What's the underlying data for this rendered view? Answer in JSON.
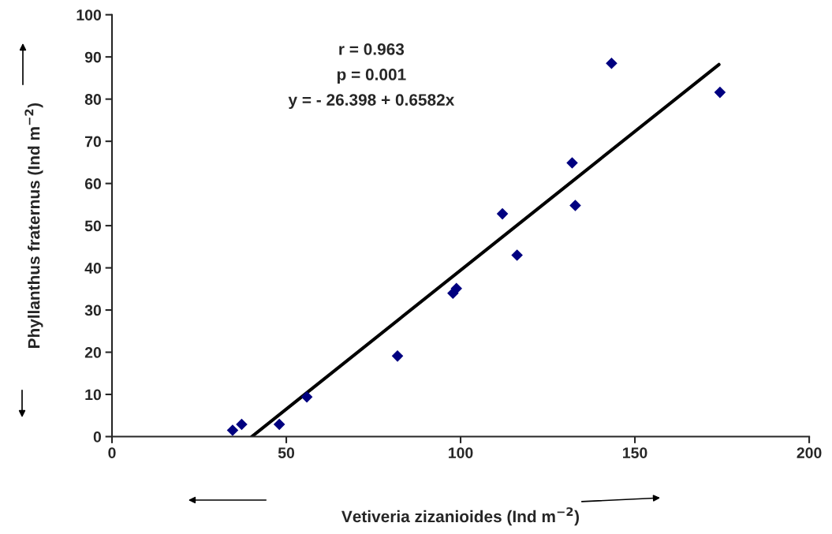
{
  "chart_data": {
    "type": "scatter",
    "xlabel": "Vetiveria zizanioides (Ind m$^{−2}$)",
    "ylabel": "Phyllanthus fraternus (Ind m$^{−2}$)",
    "annotations": [
      "r = 0.963",
      "p = 0.001",
      "y = - 26.398 + 0.6582x"
    ],
    "xlim": [
      0,
      200
    ],
    "xticks": [
      0,
      50,
      100,
      150,
      200
    ],
    "ylim": [
      0,
      100
    ],
    "yticks": [
      0,
      10,
      20,
      30,
      40,
      50,
      60,
      70,
      80,
      90,
      100
    ],
    "grid": false,
    "marker": "diamond",
    "series": [
      {
        "color": "#000080",
        "x": [
          34.6,
          37.2,
          48.0,
          55.9,
          81.9,
          97.8,
          98.8,
          112.0,
          116.2,
          132.0,
          132.9,
          143.3,
          174.4
        ],
        "values": [
          1.5,
          2.9,
          2.9,
          9.4,
          19.1,
          34.0,
          35.1,
          52.8,
          43.0,
          64.9,
          54.8,
          88.5,
          81.6
        ]
      },
      {
        "type": "line",
        "color": "#000000",
        "marker": "none",
        "line_style": "solid",
        "x": [
          40.1,
          174.1
        ],
        "values": [
          0,
          88.2
        ]
      }
    ]
  }
}
